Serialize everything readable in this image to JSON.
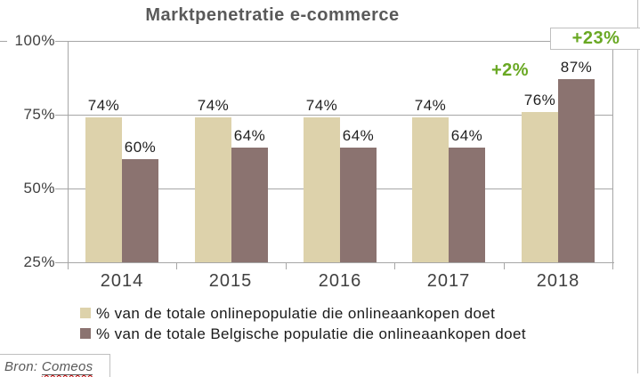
{
  "title": "Marktpenetratie e-commerce",
  "source": {
    "prefix": "Bron:",
    "name": "Comeos"
  },
  "colors": {
    "series1": "#DDD2AB",
    "series2": "#8B7370",
    "accent_green": "#69A823",
    "grid": "#A6A6A6",
    "border": "#BFBFBF",
    "title_text": "#595959",
    "axis_text": "#404040",
    "value_text": "#1F1F1F"
  },
  "chart_data": {
    "type": "bar",
    "title": "Marktpenetratie e-commerce",
    "categories": [
      "2014",
      "2015",
      "2016",
      "2017",
      "2018"
    ],
    "series": [
      {
        "name": "% van de totale onlinepopulatie die onlineaankopen doet",
        "color": "#DDD2AB",
        "values": [
          74,
          74,
          74,
          74,
          76
        ]
      },
      {
        "name": "% van de totale Belgische populatie die onlineaankopen doet",
        "color": "#8B7370",
        "values": [
          60,
          64,
          64,
          64,
          87
        ]
      }
    ],
    "value_labels": [
      [
        "74%",
        "74%",
        "74%",
        "74%",
        "76%"
      ],
      [
        "60%",
        "64%",
        "64%",
        "64%",
        "87%"
      ]
    ],
    "annotations": [
      {
        "text": "+2%",
        "target": "2018 onlinepopulatie bar",
        "boxed": false
      },
      {
        "text": "+23%",
        "target": "2018 Belgische populatie bar",
        "boxed": true
      }
    ],
    "y_ticks": [
      {
        "label": "100%",
        "value": 100
      },
      {
        "label": "75%",
        "value": 75
      },
      {
        "label": "50%",
        "value": 50
      },
      {
        "label": "25%",
        "value": 25
      }
    ],
    "ylim": [
      25,
      100
    ],
    "grid": true,
    "legend_position": "bottom"
  }
}
